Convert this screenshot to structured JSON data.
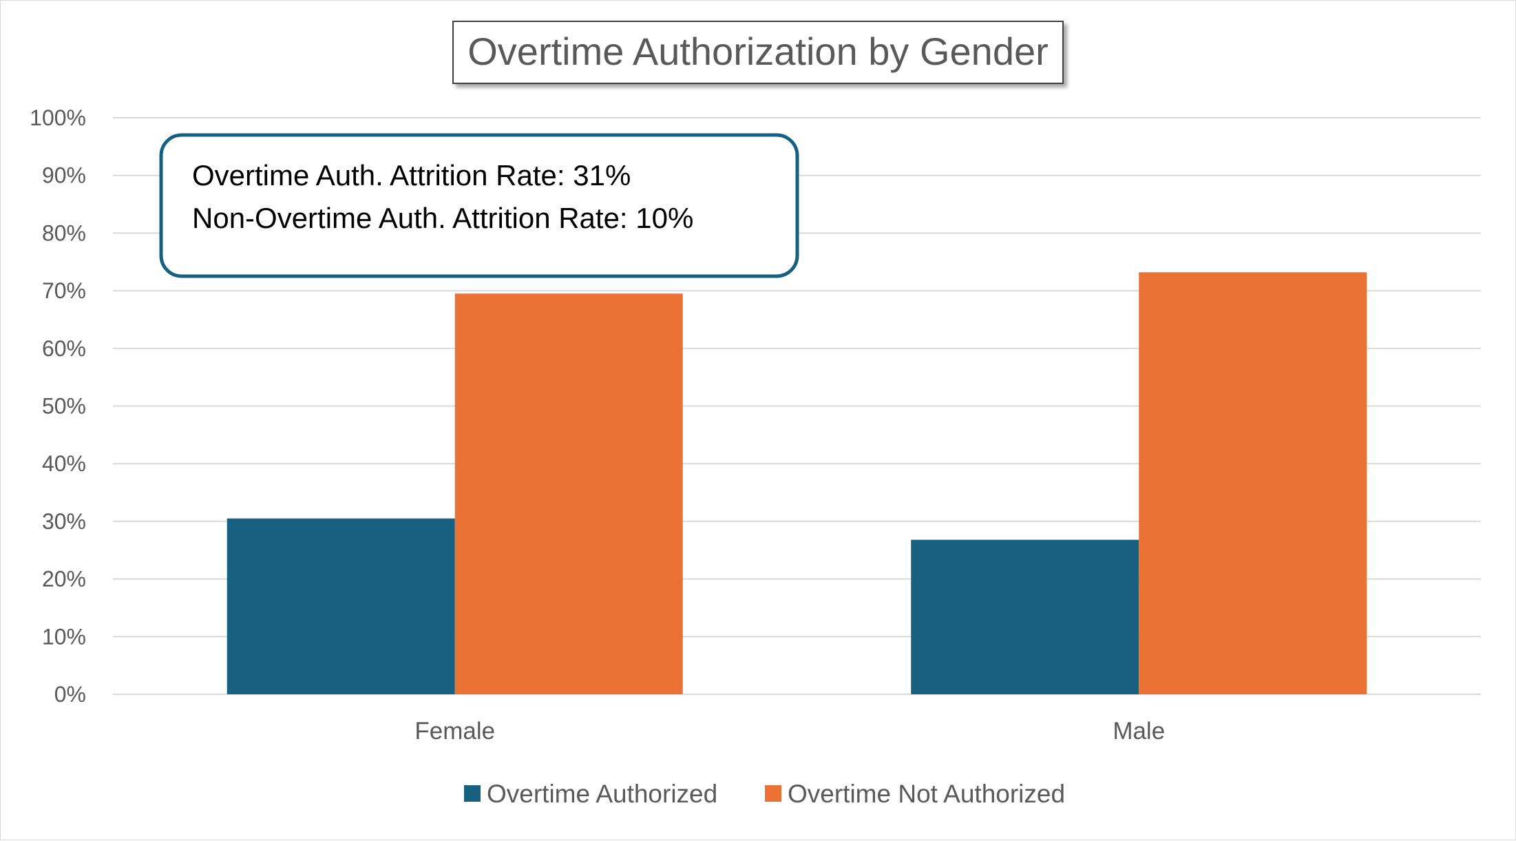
{
  "chart_data": {
    "type": "bar",
    "title": "Overtime Authorization by Gender",
    "categories": [
      "Female",
      "Male"
    ],
    "series": [
      {
        "name": "Overtime Authorized",
        "color": "#17607f",
        "values": [
          30.5,
          26.8
        ]
      },
      {
        "name": "Overtime Not Authorized",
        "color": "#e97133",
        "values": [
          69.5,
          73.2
        ]
      }
    ],
    "ylim": [
      0,
      100
    ],
    "yticks": [
      0,
      10,
      20,
      30,
      40,
      50,
      60,
      70,
      80,
      90,
      100
    ],
    "ytick_labels": [
      "0%",
      "10%",
      "20%",
      "30%",
      "40%",
      "50%",
      "60%",
      "70%",
      "80%",
      "90%",
      "100%"
    ],
    "xlabel": "",
    "ylabel": "",
    "grid": true,
    "legend_position": "bottom",
    "annotation": {
      "lines": [
        "Overtime Auth. Attrition Rate: 31%",
        "Non-Overtime Auth. Attrition Rate: 10%"
      ],
      "border_color": "#17607f"
    }
  }
}
